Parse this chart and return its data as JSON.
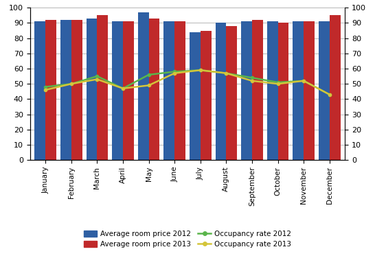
{
  "months": [
    "January",
    "February",
    "March",
    "April",
    "May",
    "June",
    "July",
    "August",
    "September",
    "October",
    "November",
    "December"
  ],
  "bar_2012": [
    91,
    92,
    93,
    91,
    97,
    91,
    84,
    90,
    91,
    91,
    91,
    91
  ],
  "bar_2013": [
    92,
    92,
    95,
    91,
    93,
    91,
    85,
    88,
    92,
    90,
    91,
    95
  ],
  "occ_2012": [
    48,
    50,
    55,
    47,
    56,
    58,
    59,
    57,
    54,
    51,
    52,
    43
  ],
  "occ_2013": [
    46,
    50,
    53,
    47,
    49,
    57,
    59,
    57,
    52,
    50,
    52,
    43
  ],
  "bar_color_2012": "#2E5FA3",
  "bar_color_2013": "#C0292A",
  "line_color_2012": "#5AB54B",
  "line_color_2013": "#D4C53A",
  "ylim_left": [
    0,
    100
  ],
  "ylim_right": [
    0,
    100
  ],
  "yticks": [
    0,
    10,
    20,
    30,
    40,
    50,
    60,
    70,
    80,
    90,
    100
  ],
  "legend_labels": [
    "Average room price 2012",
    "Average room price 2013",
    "Occupancy rate 2012",
    "Occupancy rate 2013"
  ],
  "background_color": "#ffffff",
  "grid_color": "#aaaaaa",
  "bar_width": 0.42
}
